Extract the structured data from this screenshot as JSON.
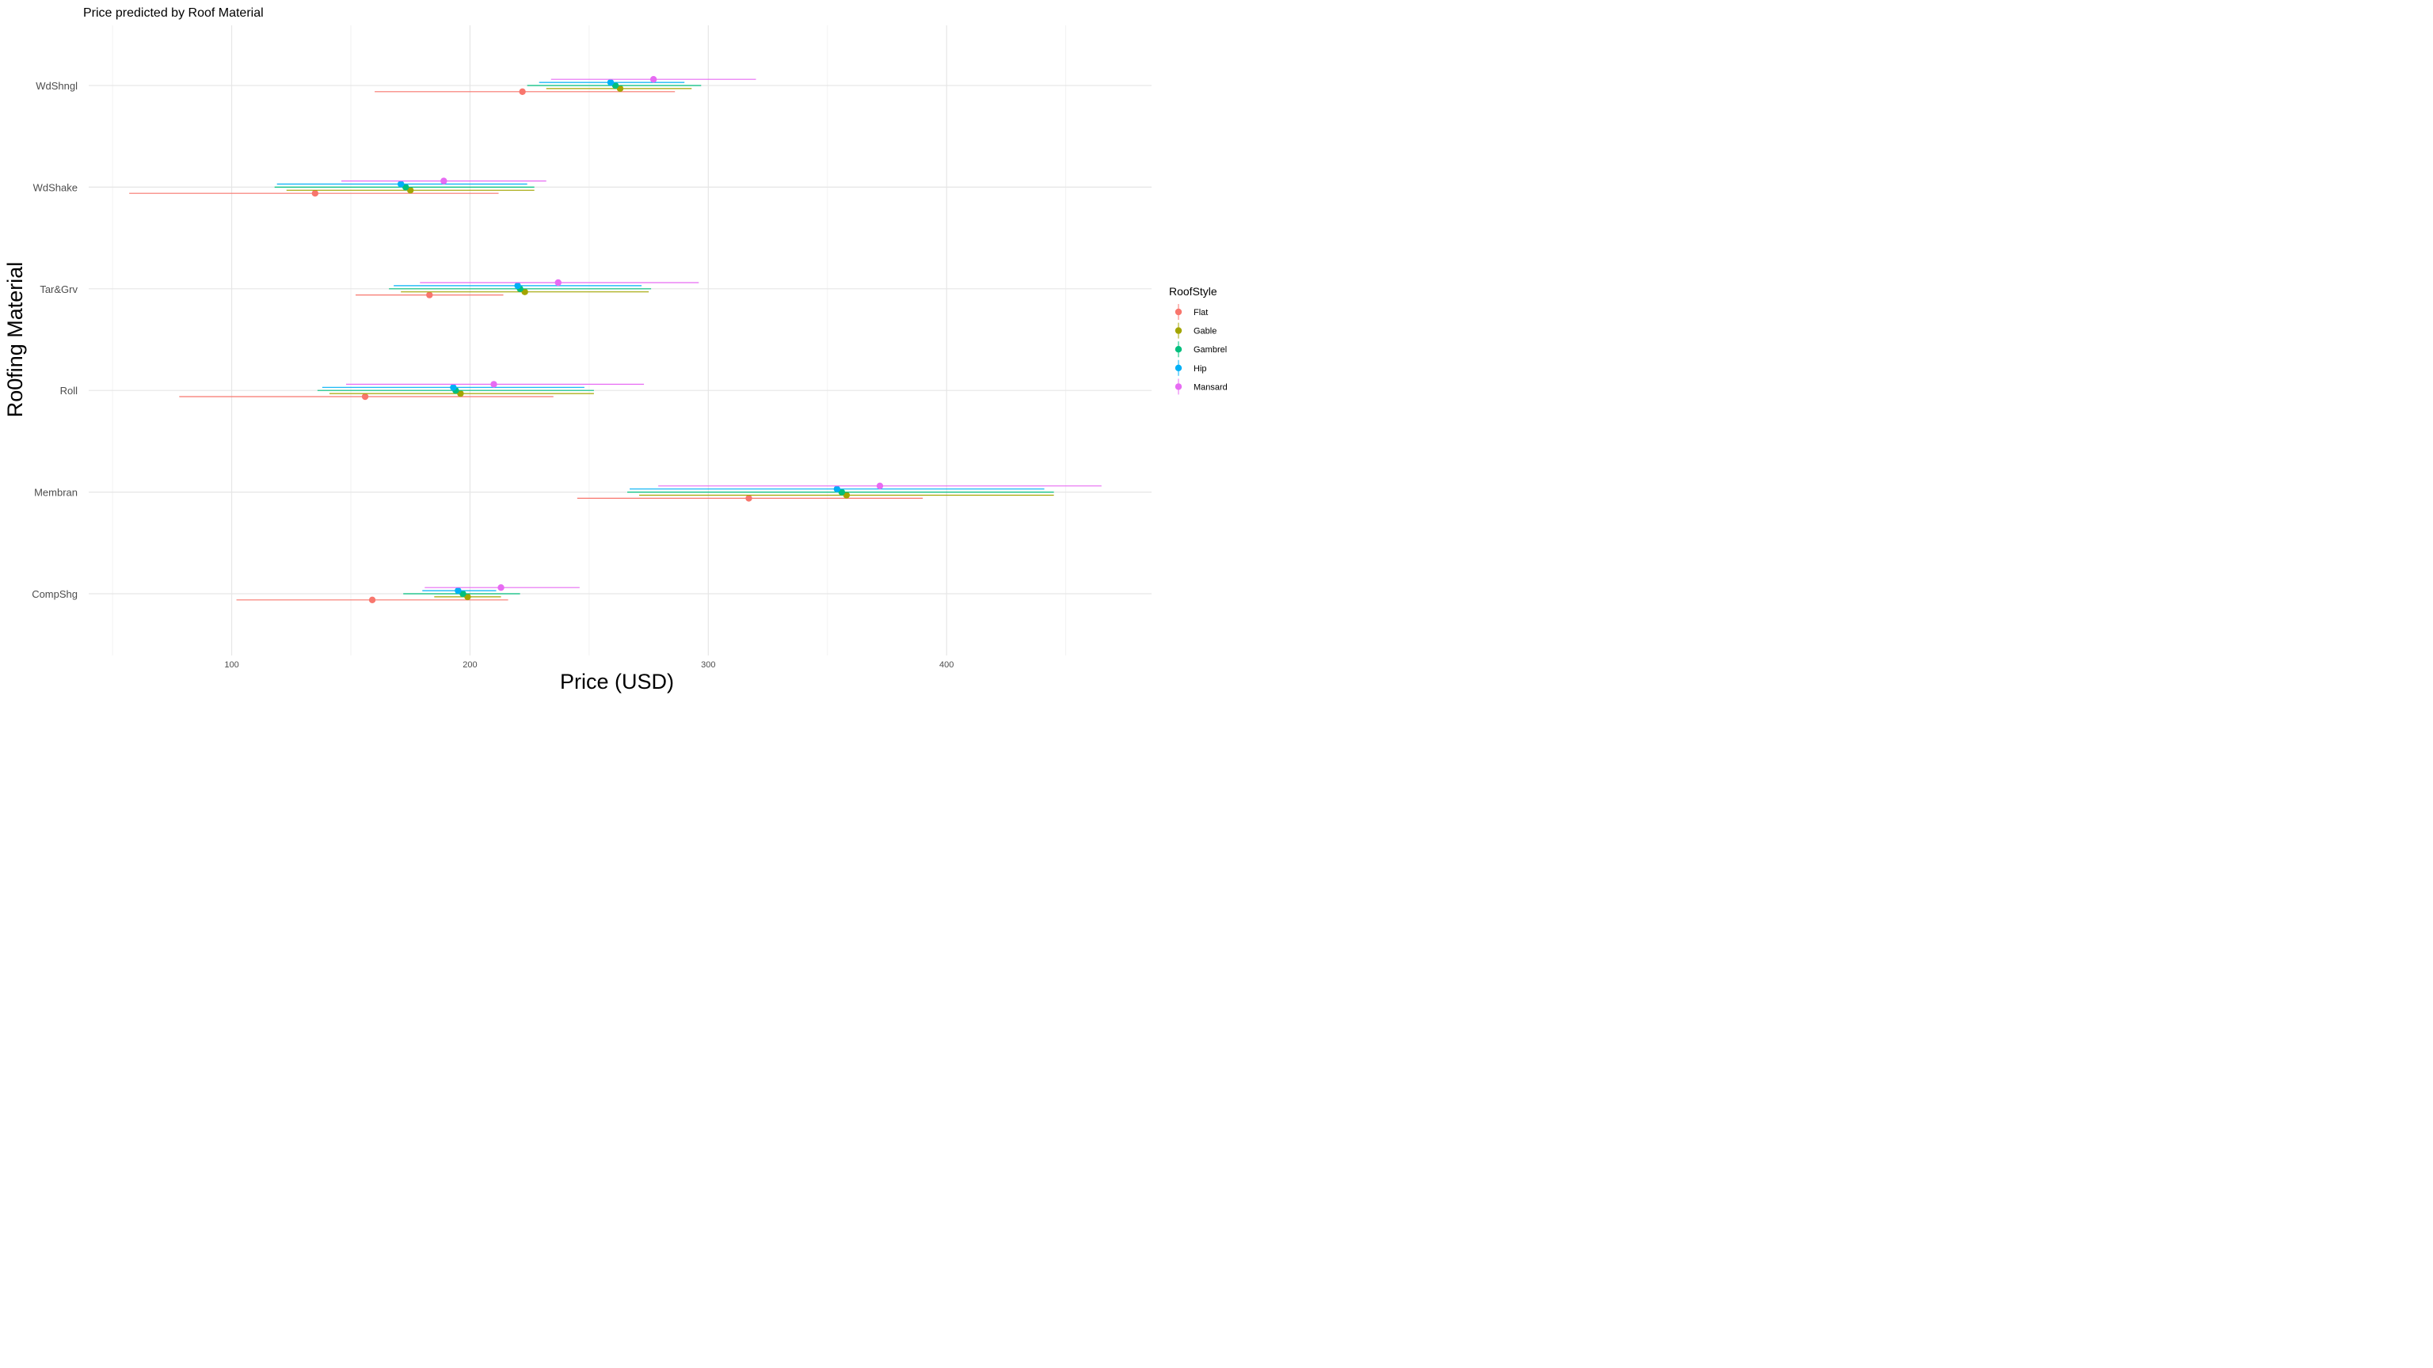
{
  "chart_data": {
    "type": "scatter",
    "title": "Price predicted by Roof Material",
    "xlabel": "Price (USD)",
    "ylabel": "Ro0fing Material",
    "xlim": [
      40,
      486
    ],
    "x_ticks": [
      100,
      200,
      300,
      400
    ],
    "categories": [
      "CompShg",
      "Membran",
      "Roll",
      "Tar&Grv",
      "WdShake",
      "WdShngl"
    ],
    "grid": true,
    "legend": {
      "title": "RoofStyle",
      "position": "right"
    },
    "series": [
      {
        "name": "Flat",
        "color": "#F8766D",
        "points": [
          {
            "category": "WdShngl",
            "x": 222,
            "lo": 160,
            "hi": 286
          },
          {
            "category": "WdShake",
            "x": 135,
            "lo": 57,
            "hi": 212
          },
          {
            "category": "Tar&Grv",
            "x": 183,
            "lo": 152,
            "hi": 214
          },
          {
            "category": "Roll",
            "x": 156,
            "lo": 78,
            "hi": 235
          },
          {
            "category": "Membran",
            "x": 317,
            "lo": 245,
            "hi": 390
          },
          {
            "category": "CompShg",
            "x": 159,
            "lo": 102,
            "hi": 216
          }
        ]
      },
      {
        "name": "Gable",
        "color": "#A3A500",
        "points": [
          {
            "category": "WdShngl",
            "x": 263,
            "lo": 232,
            "hi": 293
          },
          {
            "category": "WdShake",
            "x": 175,
            "lo": 123,
            "hi": 227
          },
          {
            "category": "Tar&Grv",
            "x": 223,
            "lo": 171,
            "hi": 275
          },
          {
            "category": "Roll",
            "x": 196,
            "lo": 141,
            "hi": 252
          },
          {
            "category": "Membran",
            "x": 358,
            "lo": 271,
            "hi": 445
          },
          {
            "category": "CompShg",
            "x": 199,
            "lo": 185,
            "hi": 213
          }
        ]
      },
      {
        "name": "Gambrel",
        "color": "#00BF7D",
        "points": [
          {
            "category": "WdShngl",
            "x": 261,
            "lo": 224,
            "hi": 297
          },
          {
            "category": "WdShake",
            "x": 173,
            "lo": 118,
            "hi": 227
          },
          {
            "category": "Tar&Grv",
            "x": 221,
            "lo": 166,
            "hi": 276
          },
          {
            "category": "Roll",
            "x": 194,
            "lo": 136,
            "hi": 252
          },
          {
            "category": "Membran",
            "x": 356,
            "lo": 266,
            "hi": 445
          },
          {
            "category": "CompShg",
            "x": 197,
            "lo": 172,
            "hi": 221
          }
        ]
      },
      {
        "name": "Hip",
        "color": "#00B0F6",
        "points": [
          {
            "category": "WdShngl",
            "x": 259,
            "lo": 229,
            "hi": 290
          },
          {
            "category": "WdShake",
            "x": 171,
            "lo": 119,
            "hi": 224
          },
          {
            "category": "Tar&Grv",
            "x": 220,
            "lo": 168,
            "hi": 272
          },
          {
            "category": "Roll",
            "x": 193,
            "lo": 138,
            "hi": 248
          },
          {
            "category": "Membran",
            "x": 354,
            "lo": 267,
            "hi": 441
          },
          {
            "category": "CompShg",
            "x": 195,
            "lo": 180,
            "hi": 211
          }
        ]
      },
      {
        "name": "Mansard",
        "color": "#E76BF3",
        "points": [
          {
            "category": "WdShngl",
            "x": 277,
            "lo": 234,
            "hi": 320
          },
          {
            "category": "WdShake",
            "x": 189,
            "lo": 146,
            "hi": 232
          },
          {
            "category": "Tar&Grv",
            "x": 237,
            "lo": 179,
            "hi": 296
          },
          {
            "category": "Roll",
            "x": 210,
            "lo": 148,
            "hi": 273
          },
          {
            "category": "Membran",
            "x": 372,
            "lo": 279,
            "hi": 465
          },
          {
            "category": "CompShg",
            "x": 213,
            "lo": 181,
            "hi": 246
          }
        ]
      }
    ]
  }
}
